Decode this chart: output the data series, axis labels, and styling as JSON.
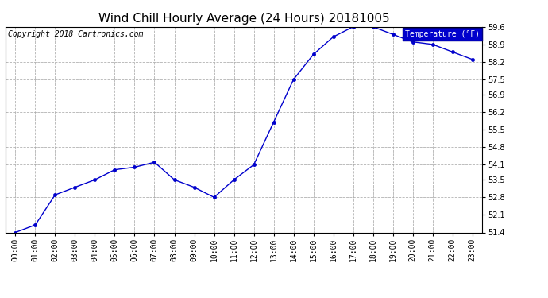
{
  "title": "Wind Chill Hourly Average (24 Hours) 20181005",
  "copyright": "Copyright 2018 Cartronics.com",
  "legend_label": "Temperature (°F)",
  "x_labels": [
    "00:00",
    "01:00",
    "02:00",
    "03:00",
    "04:00",
    "05:00",
    "06:00",
    "07:00",
    "08:00",
    "09:00",
    "10:00",
    "11:00",
    "12:00",
    "13:00",
    "14:00",
    "15:00",
    "16:00",
    "17:00",
    "18:00",
    "19:00",
    "20:00",
    "21:00",
    "22:00",
    "23:00"
  ],
  "y_values": [
    51.4,
    51.7,
    52.9,
    53.2,
    53.5,
    53.9,
    54.0,
    54.2,
    53.5,
    53.2,
    52.8,
    53.5,
    54.1,
    55.8,
    57.5,
    58.5,
    59.2,
    59.6,
    59.6,
    59.3,
    59.0,
    58.9,
    58.6,
    58.3
  ],
  "ylim": [
    51.4,
    59.6
  ],
  "y_ticks": [
    51.4,
    52.1,
    52.8,
    53.5,
    54.1,
    54.8,
    55.5,
    56.2,
    56.9,
    57.5,
    58.2,
    58.9,
    59.6
  ],
  "line_color": "#0000cc",
  "marker_color": "#0000cc",
  "background_color": "#ffffff",
  "grid_color": "#aaaaaa",
  "legend_bg": "#0000cc",
  "legend_text_color": "#ffffff",
  "title_fontsize": 11,
  "copyright_fontsize": 7,
  "tick_fontsize": 7,
  "fig_width": 6.9,
  "fig_height": 3.75,
  "dpi": 100
}
